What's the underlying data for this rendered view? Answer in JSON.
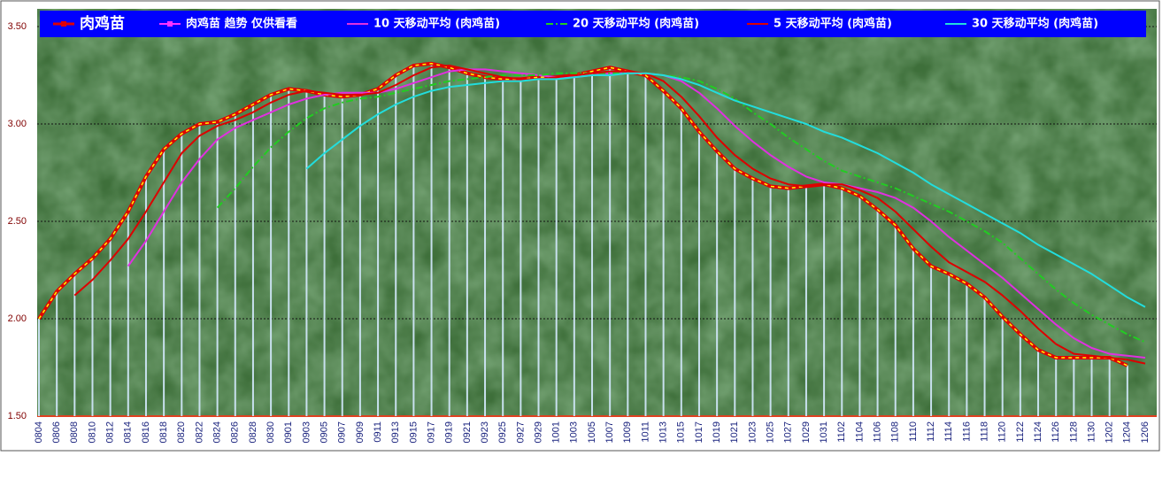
{
  "chart_data": {
    "type": "line",
    "categories": [
      "0804",
      "0806",
      "0808",
      "0810",
      "0812",
      "0814",
      "0816",
      "0818",
      "0820",
      "0822",
      "0824",
      "0826",
      "0828",
      "0830",
      "0901",
      "0903",
      "0905",
      "0907",
      "0909",
      "0911",
      "0913",
      "0915",
      "0917",
      "0919",
      "0921",
      "0923",
      "0925",
      "0927",
      "0929",
      "1001",
      "1003",
      "1005",
      "1007",
      "1009",
      "1011",
      "1013",
      "1015",
      "1017",
      "1019",
      "1021",
      "1023",
      "1025",
      "1027",
      "1029",
      "1031",
      "1102",
      "1104",
      "1106",
      "1108",
      "1110",
      "1112",
      "1114",
      "1116",
      "1118",
      "1120",
      "1122",
      "1124",
      "1126",
      "1128",
      "1130",
      "1202",
      "1204",
      "1206"
    ],
    "ylim": [
      1.5,
      3.5
    ],
    "yticks": [
      {
        "value": 1.5,
        "label": "1.50"
      },
      {
        "value": 2,
        "label": "2.00"
      },
      {
        "value": 2.5,
        "label": "2.50"
      },
      {
        "value": 3,
        "label": "3.00"
      },
      {
        "value": 3.5,
        "label": "3.50"
      }
    ],
    "grid": true,
    "series": [
      {
        "name": "肉鸡苗",
        "color": "#e00000",
        "values": [
          2.0,
          2.14,
          2.23,
          2.31,
          2.41,
          2.55,
          2.73,
          2.87,
          2.95,
          3.0,
          3.01,
          3.05,
          3.1,
          3.15,
          3.18,
          3.17,
          3.15,
          3.14,
          3.15,
          3.18,
          3.25,
          3.3,
          3.31,
          3.29,
          3.26,
          3.24,
          3.23,
          3.23,
          3.24,
          3.24,
          3.25,
          3.27,
          3.29,
          3.27,
          3.25,
          3.17,
          3.08,
          2.96,
          2.86,
          2.77,
          2.72,
          2.68,
          2.67,
          2.68,
          2.69,
          2.67,
          2.63,
          2.56,
          2.48,
          2.36,
          2.27,
          2.23,
          2.18,
          2.11,
          2.01,
          1.92,
          1.84,
          1.8,
          1.8,
          1.8,
          1.8,
          1.76,
          null
        ]
      },
      {
        "name": "肉鸡苗 趋势 仅供看看",
        "color": "#ff33ff",
        "type": "bar",
        "values": [
          2.0,
          2.14,
          2.23,
          2.31,
          2.41,
          2.55,
          2.73,
          2.87,
          2.95,
          3.0,
          3.01,
          3.05,
          3.1,
          3.15,
          3.18,
          3.17,
          3.15,
          3.14,
          3.15,
          3.18,
          3.25,
          3.3,
          3.31,
          3.29,
          3.26,
          3.24,
          3.23,
          3.23,
          3.24,
          3.24,
          3.25,
          3.27,
          3.29,
          3.27,
          3.25,
          3.17,
          3.08,
          2.96,
          2.86,
          2.77,
          2.72,
          2.68,
          2.67,
          2.68,
          2.69,
          2.67,
          2.63,
          2.56,
          2.48,
          2.36,
          2.27,
          2.23,
          2.18,
          2.11,
          2.01,
          1.92,
          1.84,
          1.8,
          1.8,
          1.8,
          1.8,
          1.76,
          null
        ]
      },
      {
        "name": "10 天移动平均 (肉鸡苗)",
        "color": "#e030e0",
        "values": [
          null,
          null,
          null,
          null,
          null,
          2.27,
          2.4,
          2.55,
          2.7,
          2.82,
          2.92,
          2.98,
          3.02,
          3.06,
          3.1,
          3.13,
          3.15,
          3.16,
          3.16,
          3.16,
          3.18,
          3.21,
          3.24,
          3.27,
          3.28,
          3.28,
          3.27,
          3.26,
          3.25,
          3.24,
          3.24,
          3.25,
          3.26,
          3.26,
          3.26,
          3.25,
          3.22,
          3.16,
          3.08,
          2.99,
          2.91,
          2.84,
          2.78,
          2.73,
          2.7,
          2.69,
          2.67,
          2.65,
          2.62,
          2.57,
          2.5,
          2.42,
          2.35,
          2.28,
          2.21,
          2.13,
          2.05,
          1.97,
          1.9,
          1.85,
          1.82,
          1.81,
          1.8
        ]
      },
      {
        "name": "20 天移动平均 (肉鸡苗)",
        "color": "#22cc22",
        "values": [
          null,
          null,
          null,
          null,
          null,
          null,
          null,
          null,
          null,
          null,
          2.57,
          2.67,
          2.78,
          2.88,
          2.96,
          3.03,
          3.08,
          3.11,
          3.13,
          3.14,
          3.16,
          3.18,
          3.2,
          3.22,
          3.23,
          3.24,
          3.25,
          3.25,
          3.25,
          3.26,
          3.26,
          3.26,
          3.26,
          3.26,
          3.26,
          3.25,
          3.24,
          3.22,
          3.18,
          3.13,
          3.06,
          3.0,
          2.93,
          2.87,
          2.81,
          2.76,
          2.73,
          2.7,
          2.67,
          2.63,
          2.59,
          2.55,
          2.5,
          2.45,
          2.39,
          2.31,
          2.23,
          2.15,
          2.08,
          2.02,
          1.97,
          1.92,
          1.88
        ]
      },
      {
        "name": "5 天移动平均 (肉鸡苗)",
        "color": "#dd0000",
        "values": [
          null,
          null,
          2.12,
          2.2,
          2.3,
          2.41,
          2.55,
          2.7,
          2.85,
          2.94,
          2.99,
          3.02,
          3.06,
          3.11,
          3.15,
          3.17,
          3.16,
          3.15,
          3.15,
          3.16,
          3.2,
          3.25,
          3.29,
          3.3,
          3.28,
          3.26,
          3.24,
          3.23,
          3.23,
          3.24,
          3.25,
          3.26,
          3.27,
          3.27,
          3.26,
          3.22,
          3.14,
          3.04,
          2.93,
          2.84,
          2.77,
          2.72,
          2.69,
          2.68,
          2.69,
          2.69,
          2.66,
          2.62,
          2.55,
          2.46,
          2.37,
          2.29,
          2.24,
          2.19,
          2.12,
          2.04,
          1.95,
          1.87,
          1.82,
          1.81,
          1.8,
          1.79,
          1.77
        ]
      },
      {
        "name": "30 天移动平均 (肉鸡苗)",
        "color": "#22dddd",
        "values": [
          null,
          null,
          null,
          null,
          null,
          null,
          null,
          null,
          null,
          null,
          null,
          null,
          null,
          null,
          null,
          2.77,
          2.85,
          2.92,
          2.99,
          3.05,
          3.1,
          3.14,
          3.17,
          3.19,
          3.2,
          3.21,
          3.22,
          3.22,
          3.23,
          3.23,
          3.24,
          3.25,
          3.25,
          3.26,
          3.26,
          3.25,
          3.23,
          3.2,
          3.16,
          3.12,
          3.09,
          3.06,
          3.03,
          3.0,
          2.96,
          2.93,
          2.89,
          2.85,
          2.8,
          2.75,
          2.69,
          2.64,
          2.59,
          2.54,
          2.49,
          2.44,
          2.38,
          2.33,
          2.28,
          2.23,
          2.17,
          2.11,
          2.06
        ]
      }
    ]
  }
}
